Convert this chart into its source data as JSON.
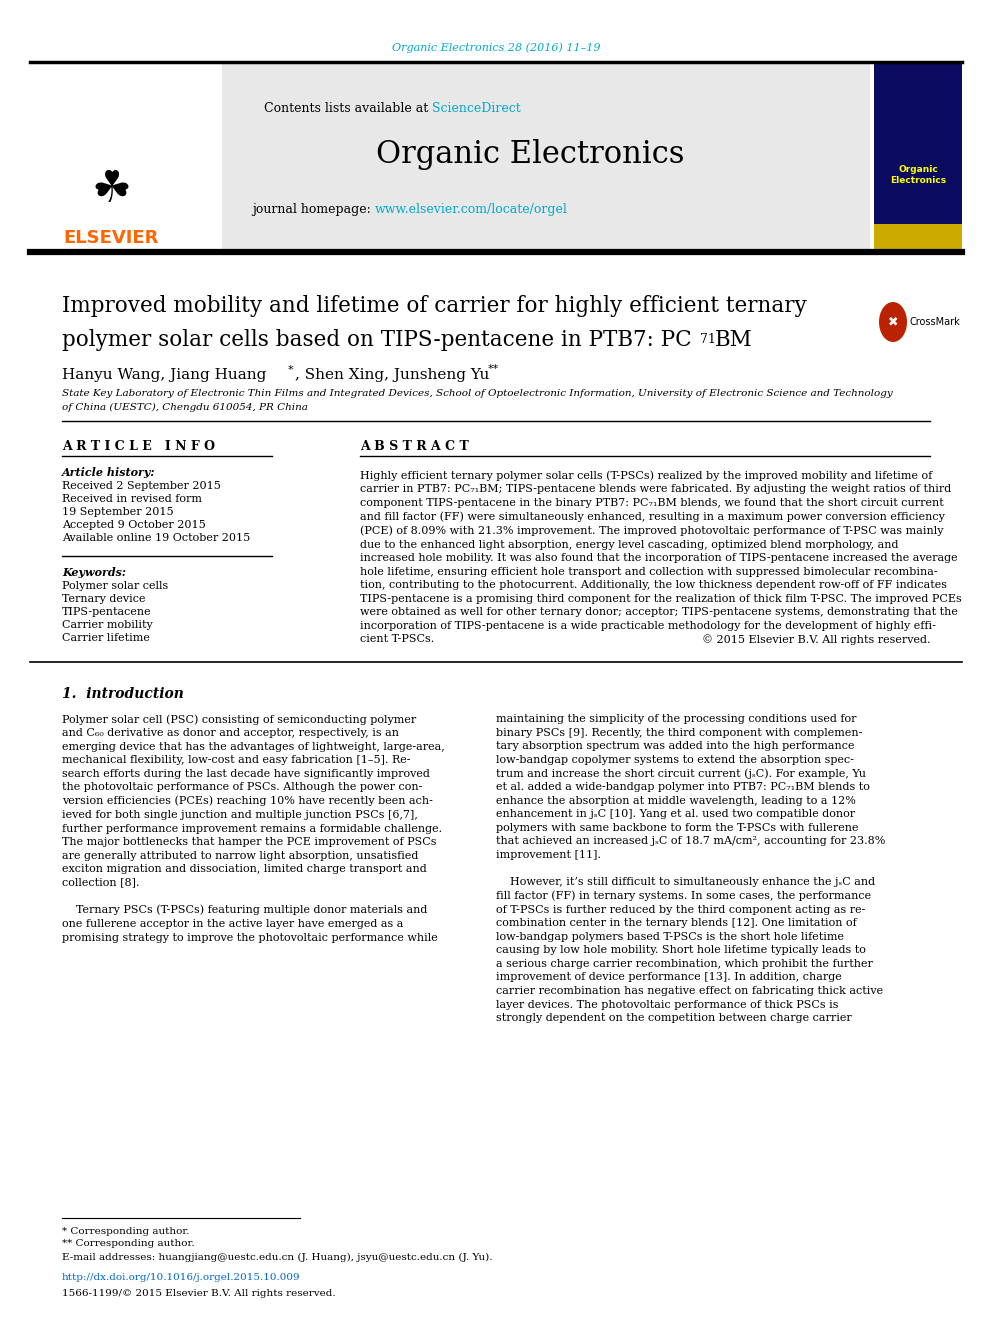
{
  "bg_color": "#ffffff",
  "journal_ref": "Organic Electronics 28 (2016) 11–19",
  "journal_ref_color": "#00aacc",
  "header_bg": "#e8e8e8",
  "contents_text": "Contents lists available at ",
  "sciencedirect_text": "ScienceDirect",
  "sciencedirect_color": "#00aacc",
  "journal_name": "Organic Electronics",
  "journal_homepage_prefix": "journal homepage: ",
  "journal_homepage_url": "www.elsevier.com/locate/orgel",
  "journal_homepage_color": "#00aacc",
  "elsevier_color": "#ff6600",
  "divider_color": "#000000",
  "article_info_title": "A R T I C L E   I N F O",
  "abstract_title": "A B S T R A C T",
  "copyright_text": "© 2015 Elsevier B.V. All rights reserved.",
  "intro_title": "1.  introduction",
  "footnote1": "* Corresponding author.",
  "footnote2": "** Corresponding author.",
  "footnote3": "E-mail addresses: huangjiang@uestc.edu.cn (J. Huang), jsyu@uestc.edu.cn (J. Yu).",
  "doi_text": "http://dx.doi.org/10.1016/j.orgel.2015.10.009",
  "doi_color": "#0066cc",
  "issn_text": "1566-1199/© 2015 Elsevier B.V. All rights reserved."
}
